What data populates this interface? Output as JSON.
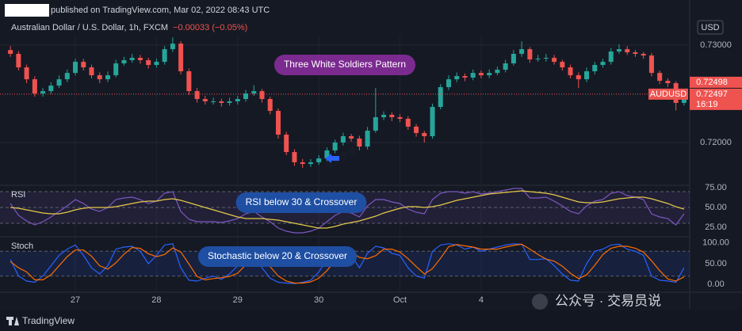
{
  "header": {
    "published": "published on TradingView.com, Mar 02, 2022 08:43 UTC",
    "brand": "TradingView",
    "watermark": "交易员说",
    "footer_watermark": "公众号 · 交易员说"
  },
  "chart_data": [
    {
      "type": "candlestick",
      "title": "Australian Dollar / U.S. Dollar, 1h, FXCM",
      "change": "−0.00033 (−0.05%)",
      "currency": "USD",
      "annotation": "Three White Soldiers Pattern",
      "categories": [
        null,
        null,
        null,
        null,
        null,
        null,
        null,
        null,
        "27",
        null,
        null,
        null,
        null,
        null,
        null,
        null,
        null,
        null,
        "28",
        null,
        null,
        null,
        null,
        null,
        null,
        null,
        null,
        null,
        "29",
        null,
        null,
        null,
        null,
        null,
        null,
        null,
        null,
        null,
        "30",
        null,
        null,
        null,
        null,
        null,
        null,
        null,
        null,
        null,
        "Oct",
        null,
        null,
        null,
        null,
        null,
        null,
        null,
        null,
        null,
        "4",
        null,
        null,
        null,
        null,
        null,
        null,
        null,
        null,
        null,
        null,
        null,
        null,
        null,
        null,
        null,
        null,
        null,
        null,
        null,
        null,
        null,
        null,
        null,
        null,
        null
      ],
      "open": [
        0.7295,
        0.72911,
        0.72772,
        0.7265,
        0.72504,
        0.72528,
        0.72585,
        0.7265,
        0.72715,
        0.72829,
        0.72772,
        0.72691,
        0.7265,
        0.72691,
        0.72813,
        0.72846,
        0.7287,
        0.72846,
        0.72797,
        0.72829,
        0.72959,
        0.73016,
        0.72732,
        0.72528,
        0.72447,
        0.72423,
        0.72423,
        0.72407,
        0.72423,
        0.72447,
        0.72504,
        0.72528,
        0.72447,
        0.72325,
        0.72081,
        0.71902,
        0.71797,
        0.7178,
        0.71797,
        0.71837,
        0.71919,
        0.72,
        0.72065,
        0.72041,
        0.71959,
        0.72122,
        0.7226,
        0.72285,
        0.7226,
        0.72244,
        0.72163,
        0.72098,
        0.72065,
        0.72366,
        0.72569,
        0.7265,
        0.72683,
        0.72667,
        0.72715,
        0.72691,
        0.72715,
        0.72748,
        0.72813,
        0.72911,
        0.72959,
        0.72854,
        0.72862,
        0.7287,
        0.72829,
        0.72772,
        0.72691,
        0.7265,
        0.72732,
        0.72797,
        0.72829,
        0.72935,
        0.72959,
        0.72927,
        0.72911,
        0.72894,
        0.72715,
        0.72634,
        0.7261,
        0.72407
      ],
      "high": [
        0.7299,
        0.7294,
        0.728,
        0.7268,
        0.7256,
        0.7262,
        0.7269,
        0.7275,
        0.7286,
        0.7286,
        0.728,
        0.7272,
        0.7273,
        0.7285,
        0.7288,
        0.7291,
        0.729,
        0.7287,
        0.7286,
        0.7299,
        0.7308,
        0.7304,
        0.7276,
        0.7256,
        0.7248,
        0.7246,
        0.7245,
        0.7246,
        0.7248,
        0.7254,
        0.7259,
        0.7255,
        0.7247,
        0.7235,
        0.7211,
        0.7193,
        0.7183,
        0.7183,
        0.7187,
        0.7195,
        0.7203,
        0.721,
        0.7209,
        0.7207,
        0.7216,
        0.7256,
        0.7232,
        0.7231,
        0.7229,
        0.7227,
        0.7219,
        0.7212,
        0.724,
        0.726,
        0.7269,
        0.7272,
        0.7271,
        0.7275,
        0.7274,
        0.7275,
        0.7278,
        0.7285,
        0.7295,
        0.7304,
        0.7298,
        0.729,
        0.7291,
        0.729,
        0.7285,
        0.728,
        0.7272,
        0.7277,
        0.7283,
        0.7286,
        0.7297,
        0.7301,
        0.7299,
        0.7295,
        0.7293,
        0.7292,
        0.7274,
        0.7266,
        0.7263,
        0.7254
      ],
      "low": [
        0.7288,
        0.7274,
        0.7261,
        0.7247,
        0.7247,
        0.725,
        0.7256,
        0.7262,
        0.7269,
        0.7274,
        0.7266,
        0.7261,
        0.7262,
        0.7267,
        0.7279,
        0.7282,
        0.7281,
        0.7276,
        0.7277,
        0.728,
        0.7293,
        0.727,
        0.7249,
        0.7241,
        0.7239,
        0.7239,
        0.7237,
        0.7238,
        0.7239,
        0.7242,
        0.7248,
        0.7241,
        0.7229,
        0.7204,
        0.7187,
        0.7176,
        0.7174,
        0.7175,
        0.7177,
        0.7181,
        0.7189,
        0.7197,
        0.7201,
        0.7192,
        0.7193,
        0.721,
        0.7223,
        0.7222,
        0.7221,
        0.7213,
        0.7206,
        0.72,
        0.7204,
        0.7234,
        0.7254,
        0.7262,
        0.7263,
        0.7264,
        0.7266,
        0.7266,
        0.7269,
        0.7272,
        0.7279,
        0.7288,
        0.7282,
        0.7283,
        0.7283,
        0.728,
        0.7274,
        0.7266,
        0.7256,
        0.7262,
        0.727,
        0.7277,
        0.728,
        0.7291,
        0.729,
        0.7288,
        0.7286,
        0.7268,
        0.726,
        0.7257,
        0.7233,
        0.7238
      ],
      "close": [
        0.72911,
        0.72772,
        0.7265,
        0.72504,
        0.72528,
        0.72585,
        0.7265,
        0.72715,
        0.72829,
        0.72772,
        0.72691,
        0.7265,
        0.72691,
        0.72813,
        0.72846,
        0.7287,
        0.72846,
        0.72797,
        0.72829,
        0.72959,
        0.73016,
        0.72732,
        0.72528,
        0.72447,
        0.72423,
        0.72423,
        0.72407,
        0.72423,
        0.72447,
        0.72504,
        0.72528,
        0.72447,
        0.72325,
        0.72081,
        0.71902,
        0.71797,
        0.7178,
        0.71797,
        0.71837,
        0.71919,
        0.72,
        0.72065,
        0.72041,
        0.71959,
        0.72122,
        0.7226,
        0.72285,
        0.7226,
        0.72244,
        0.72163,
        0.72098,
        0.72065,
        0.72366,
        0.72569,
        0.7265,
        0.72683,
        0.72667,
        0.72715,
        0.72691,
        0.72715,
        0.72748,
        0.72813,
        0.72911,
        0.72959,
        0.72854,
        0.72862,
        0.7287,
        0.72829,
        0.72772,
        0.72691,
        0.7265,
        0.72732,
        0.72797,
        0.72829,
        0.72935,
        0.72959,
        0.72927,
        0.72911,
        0.72894,
        0.72715,
        0.72634,
        0.7261,
        0.72407,
        0.72497
      ],
      "up_color": "#26a69a",
      "down_color": "#ef5350",
      "ylim": [
        0.71577,
        0.73098
      ],
      "yticks": [
        {
          "value": 0.72,
          "label": "0.72000"
        },
        {
          "value": 0.73,
          "label": "0.73000"
        }
      ],
      "grid": true,
      "symbol": "AUDUSD",
      "price_lines": [
        {
          "value": 0.72498,
          "label": "0.72498"
        },
        {
          "value": 0.72497,
          "label": "0.72497"
        }
      ],
      "countdown": "16:19"
    },
    {
      "type": "line",
      "title": "RSI",
      "annotation": "RSI below 30 & Crossover",
      "ylim": [
        14,
        77
      ],
      "yticks": [
        {
          "value": 25,
          "label": "25.00"
        },
        {
          "value": 50,
          "label": "50.00"
        },
        {
          "value": 75,
          "label": "75.00"
        }
      ],
      "levels": [
        30,
        50,
        70
      ],
      "band_color": "#7e57c2",
      "series": [
        {
          "color": "#7e57c2",
          "values": [
            55,
            40,
            33,
            28,
            32,
            38,
            45,
            52,
            60,
            55,
            48,
            45,
            50,
            60,
            62,
            63,
            60,
            55,
            58,
            68,
            70,
            45,
            35,
            32,
            32,
            32,
            31,
            33,
            36,
            42,
            45,
            38,
            32,
            24,
            20,
            18,
            18,
            20,
            24,
            32,
            40,
            45,
            43,
            38,
            52,
            60,
            60,
            57,
            55,
            48,
            44,
            42,
            60,
            68,
            70,
            70,
            68,
            70,
            67,
            68,
            70,
            72,
            74,
            74,
            62,
            62,
            63,
            58,
            52,
            45,
            42,
            52,
            58,
            60,
            68,
            70,
            65,
            63,
            60,
            42,
            38,
            36,
            28,
            42
          ]
        },
        {
          "color": "#e5c84a",
          "values": [
            50,
            49,
            47,
            45,
            43,
            42,
            42,
            44,
            47,
            49,
            50,
            50,
            50,
            51,
            53,
            55,
            57,
            58,
            58,
            60,
            61,
            59,
            56,
            53,
            50,
            47,
            44,
            41,
            38,
            36,
            36,
            36,
            35,
            34,
            32,
            30,
            28,
            26,
            24,
            24,
            26,
            29,
            31,
            33,
            36,
            39,
            43,
            46,
            49,
            51,
            51,
            50,
            51,
            53,
            56,
            59,
            61,
            63,
            65,
            67,
            68,
            69,
            70,
            71,
            70,
            69,
            68,
            66,
            63,
            60,
            57,
            56,
            56,
            57,
            59,
            61,
            62,
            63,
            63,
            61,
            58,
            55,
            51,
            48
          ]
        }
      ]
    },
    {
      "type": "line",
      "title": "Stoch",
      "annotation": "Stochastic below 20 & Crossover",
      "ylim": [
        -17,
        113
      ],
      "yticks": [
        {
          "value": 0,
          "label": "0.00"
        },
        {
          "value": 50,
          "label": "50.00"
        },
        {
          "value": 100,
          "label": "100.00"
        }
      ],
      "levels": [
        20,
        80
      ],
      "band_color": "#2962ff",
      "series": [
        {
          "color": "#2962ff",
          "values": [
            60,
            20,
            8,
            5,
            20,
            45,
            70,
            85,
            95,
            70,
            40,
            25,
            45,
            85,
            90,
            92,
            80,
            50,
            70,
            95,
            98,
            40,
            10,
            8,
            15,
            20,
            12,
            25,
            45,
            70,
            75,
            40,
            15,
            5,
            3,
            2,
            5,
            10,
            30,
            60,
            80,
            85,
            70,
            40,
            75,
            92,
            88,
            75,
            70,
            40,
            20,
            15,
            80,
            95,
            98,
            95,
            85,
            90,
            80,
            85,
            90,
            95,
            98,
            97,
            60,
            60,
            62,
            45,
            25,
            10,
            8,
            50,
            80,
            85,
            95,
            97,
            85,
            80,
            70,
            20,
            10,
            8,
            5,
            40
          ]
        },
        {
          "color": "#ff6d00",
          "values": [
            55,
            40,
            30,
            11,
            11,
            23,
            45,
            67,
            83,
            83,
            68,
            45,
            37,
            52,
            73,
            89,
            87,
            74,
            67,
            72,
            88,
            78,
            49,
            19,
            11,
            14,
            16,
            19,
            27,
            47,
            63,
            62,
            43,
            20,
            8,
            3,
            3,
            6,
            15,
            33,
            57,
            75,
            78,
            65,
            62,
            69,
            85,
            85,
            78,
            62,
            43,
            25,
            38,
            63,
            91,
            96,
            93,
            90,
            85,
            85,
            85,
            90,
            94,
            97,
            85,
            72,
            61,
            56,
            44,
            27,
            14,
            23,
            46,
            72,
            87,
            92,
            92,
            87,
            78,
            57,
            33,
            13,
            8,
            18
          ]
        }
      ]
    }
  ]
}
